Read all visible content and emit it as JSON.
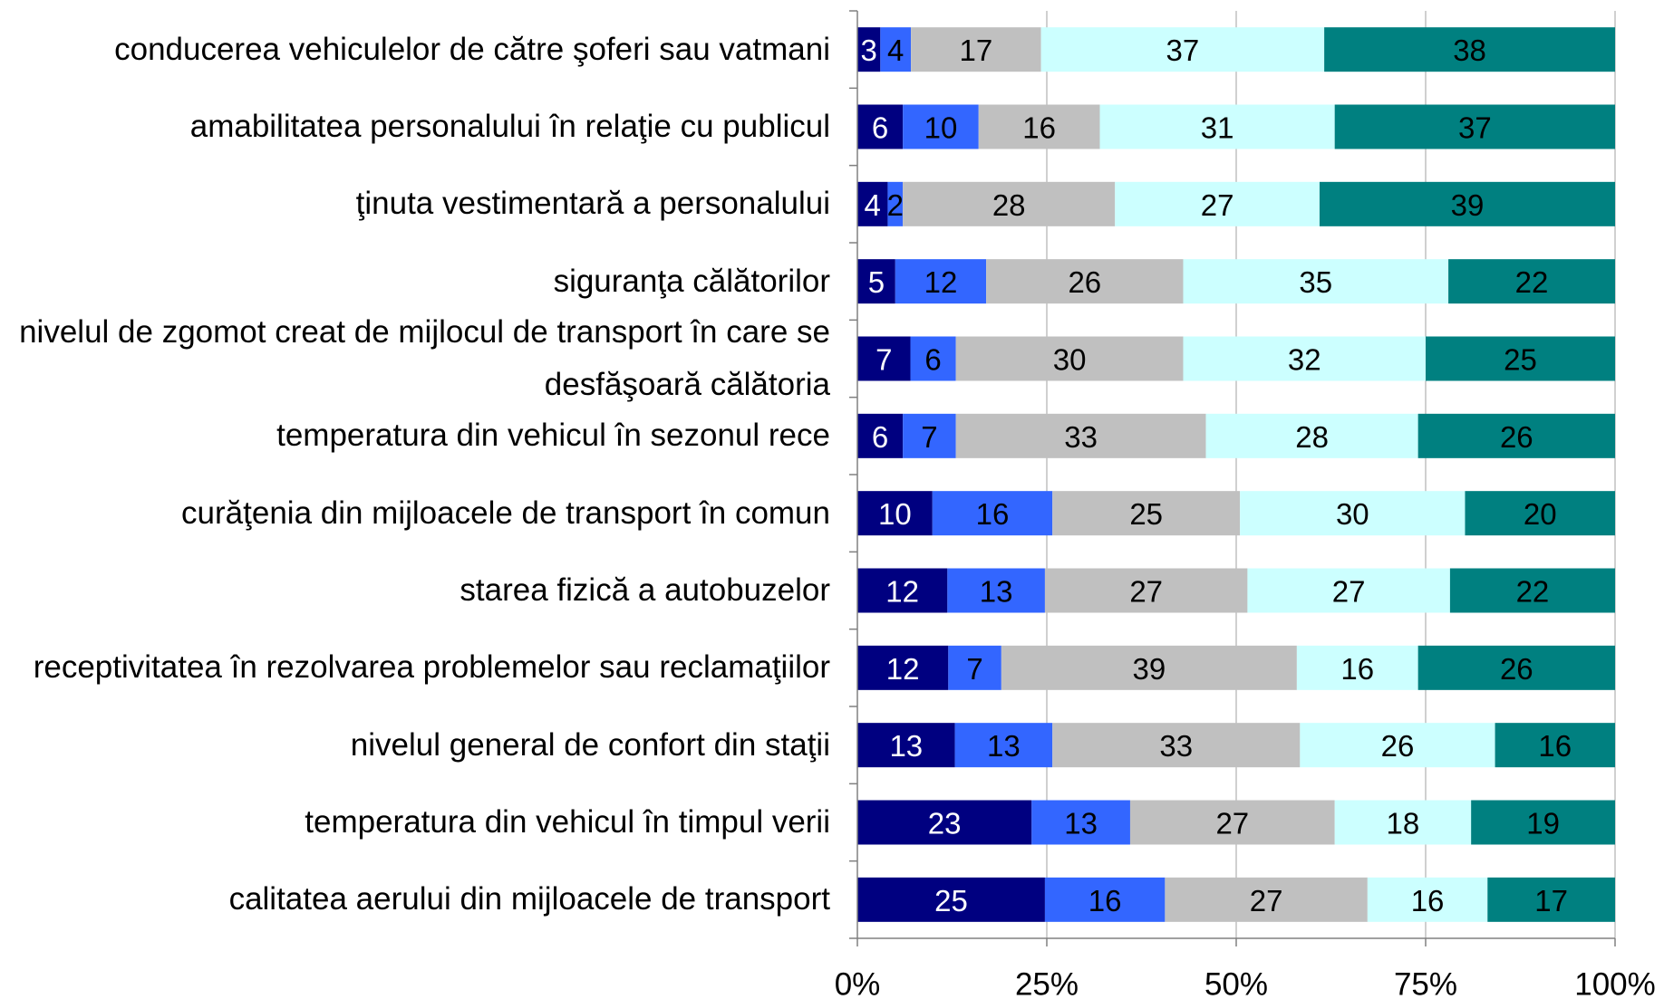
{
  "chart_data": {
    "type": "bar",
    "orientation": "horizontal",
    "stacked": "percent",
    "categories": [
      "conducerea vehiculelor de către şoferi sau vatmani",
      "amabilitatea personalului în relaţie cu publicul",
      "ţinuta vestimentară a personalului",
      "siguranţa călătorilor",
      "nivelul de zgomot creat de mijlocul de transport în care se desfăşoară călătoria",
      "temperatura din vehicul în sezonul rece",
      "curăţenia din mijloacele de transport în comun",
      "starea fizică a autobuzelor",
      "receptivitatea în rezolvarea problemelor sau reclamaţiilor",
      "nivelul general de confort din staţii",
      "temperatura din vehicul în timpul verii",
      "calitatea aerului din mijloacele de transport"
    ],
    "series": [
      {
        "color": "#000080",
        "values": [
          3,
          6,
          4,
          5,
          7,
          6,
          10,
          12,
          12,
          13,
          23,
          25
        ]
      },
      {
        "color": "#3366ff",
        "values": [
          4,
          10,
          2,
          12,
          6,
          7,
          16,
          13,
          7,
          13,
          13,
          16
        ]
      },
      {
        "color": "#c0c0c0",
        "values": [
          17,
          16,
          28,
          26,
          30,
          33,
          25,
          27,
          39,
          33,
          27,
          27
        ]
      },
      {
        "color": "#ccffff",
        "values": [
          37,
          31,
          27,
          35,
          32,
          28,
          30,
          27,
          16,
          26,
          18,
          16
        ]
      },
      {
        "color": "#008080",
        "values": [
          38,
          37,
          39,
          22,
          25,
          26,
          20,
          22,
          26,
          16,
          19,
          17
        ]
      }
    ],
    "xlim": [
      0,
      100
    ],
    "xticks": [
      {
        "value": 0,
        "label": "0%"
      },
      {
        "value": 25,
        "label": "25%"
      },
      {
        "value": 50,
        "label": "50%"
      },
      {
        "value": 75,
        "label": "75%"
      },
      {
        "value": 100,
        "label": "100%"
      }
    ],
    "grid": true
  }
}
